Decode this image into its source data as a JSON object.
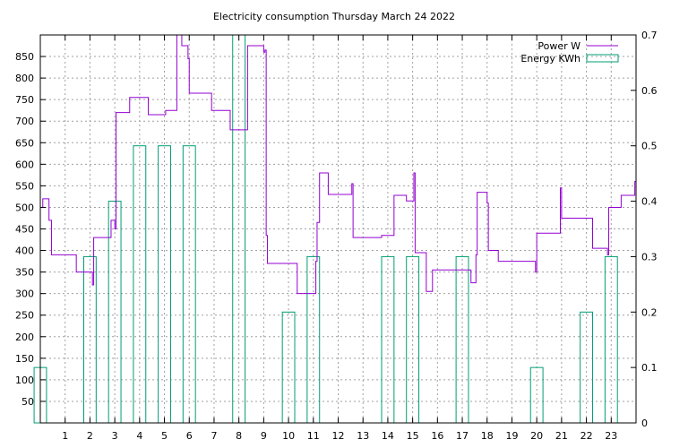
{
  "chart_data": {
    "type": "line",
    "title": "Electricity consumption Thursday March 24 2022",
    "xlabel": "",
    "ylabel": "",
    "y2label": "",
    "xlim": [
      0,
      24
    ],
    "ylim": [
      0,
      900
    ],
    "y2lim": [
      0,
      0.7
    ],
    "grid": true,
    "legend_position": "top-right",
    "x_ticks": [
      1,
      2,
      3,
      4,
      5,
      6,
      7,
      8,
      9,
      10,
      11,
      12,
      13,
      14,
      15,
      16,
      17,
      18,
      19,
      20,
      21,
      22,
      23
    ],
    "y_ticks": [
      50,
      100,
      150,
      200,
      250,
      300,
      350,
      400,
      450,
      500,
      550,
      600,
      650,
      700,
      750,
      800,
      850
    ],
    "y2_ticks": [
      0,
      0.1,
      0.2,
      0.3,
      0.4,
      0.5,
      0.6,
      0.7
    ],
    "colors": {
      "power": "#9400d3",
      "energy": "#009e73",
      "grid": "#a0a0a0"
    },
    "series": [
      {
        "name": "Power W",
        "axis": "y",
        "style": "steps",
        "points": [
          [
            0,
            500
          ],
          [
            0.1,
            520
          ],
          [
            0.35,
            470
          ],
          [
            0.45,
            390
          ],
          [
            1.4,
            390
          ],
          [
            1.45,
            350
          ],
          [
            2.05,
            350
          ],
          [
            2.1,
            320
          ],
          [
            2.15,
            430
          ],
          [
            2.8,
            430
          ],
          [
            2.85,
            470
          ],
          [
            3.0,
            450
          ],
          [
            3.05,
            720
          ],
          [
            3.55,
            720
          ],
          [
            3.6,
            755
          ],
          [
            4.3,
            755
          ],
          [
            4.35,
            715
          ],
          [
            5.0,
            715
          ],
          [
            5.05,
            725
          ],
          [
            5.45,
            725
          ],
          [
            5.5,
            900
          ],
          [
            5.7,
            875
          ],
          [
            5.95,
            845
          ],
          [
            6.0,
            765
          ],
          [
            6.85,
            765
          ],
          [
            6.9,
            725
          ],
          [
            7.6,
            725
          ],
          [
            7.65,
            680
          ],
          [
            8.3,
            680
          ],
          [
            8.35,
            875
          ],
          [
            8.95,
            875
          ],
          [
            9.0,
            860
          ],
          [
            9.05,
            865
          ],
          [
            9.1,
            435
          ],
          [
            9.15,
            370
          ],
          [
            10.3,
            370
          ],
          [
            10.35,
            300
          ],
          [
            11.05,
            300
          ],
          [
            11.1,
            375
          ],
          [
            11.15,
            465
          ],
          [
            11.25,
            580
          ],
          [
            11.55,
            580
          ],
          [
            11.6,
            530
          ],
          [
            12.5,
            530
          ],
          [
            12.55,
            555
          ],
          [
            12.6,
            430
          ],
          [
            13.7,
            430
          ],
          [
            13.75,
            435
          ],
          [
            14.2,
            435
          ],
          [
            14.25,
            528
          ],
          [
            14.7,
            528
          ],
          [
            14.75,
            515
          ],
          [
            15.0,
            515
          ],
          [
            15.05,
            580
          ],
          [
            15.1,
            395
          ],
          [
            15.5,
            395
          ],
          [
            15.55,
            305
          ],
          [
            15.75,
            305
          ],
          [
            15.8,
            355
          ],
          [
            17.3,
            355
          ],
          [
            17.35,
            325
          ],
          [
            17.5,
            325
          ],
          [
            17.55,
            390
          ],
          [
            17.6,
            535
          ],
          [
            17.95,
            535
          ],
          [
            18.0,
            510
          ],
          [
            18.05,
            400
          ],
          [
            18.4,
            400
          ],
          [
            18.45,
            375
          ],
          [
            19.9,
            375
          ],
          [
            19.95,
            350
          ],
          [
            20.0,
            440
          ],
          [
            20.9,
            440
          ],
          [
            20.95,
            545
          ],
          [
            21.0,
            475
          ],
          [
            22.2,
            475
          ],
          [
            22.25,
            405
          ],
          [
            22.8,
            405
          ],
          [
            22.85,
            390
          ],
          [
            22.9,
            500
          ],
          [
            23.35,
            500
          ],
          [
            23.4,
            528
          ],
          [
            23.9,
            528
          ],
          [
            23.95,
            560
          ],
          [
            24.0,
            390
          ]
        ]
      },
      {
        "name": "Energy KWh",
        "axis": "y2",
        "style": "bars",
        "bars": [
          [
            0,
            0.1
          ],
          [
            2,
            0.3
          ],
          [
            3,
            0.4
          ],
          [
            4,
            0.5
          ],
          [
            5,
            0.5
          ],
          [
            6,
            0.5
          ],
          [
            8,
            0.7
          ],
          [
            10,
            0.2
          ],
          [
            11,
            0.3
          ],
          [
            14,
            0.3
          ],
          [
            15,
            0.3
          ],
          [
            17,
            0.3
          ],
          [
            20,
            0.1
          ],
          [
            22,
            0.2
          ],
          [
            23,
            0.3
          ]
        ]
      }
    ]
  }
}
